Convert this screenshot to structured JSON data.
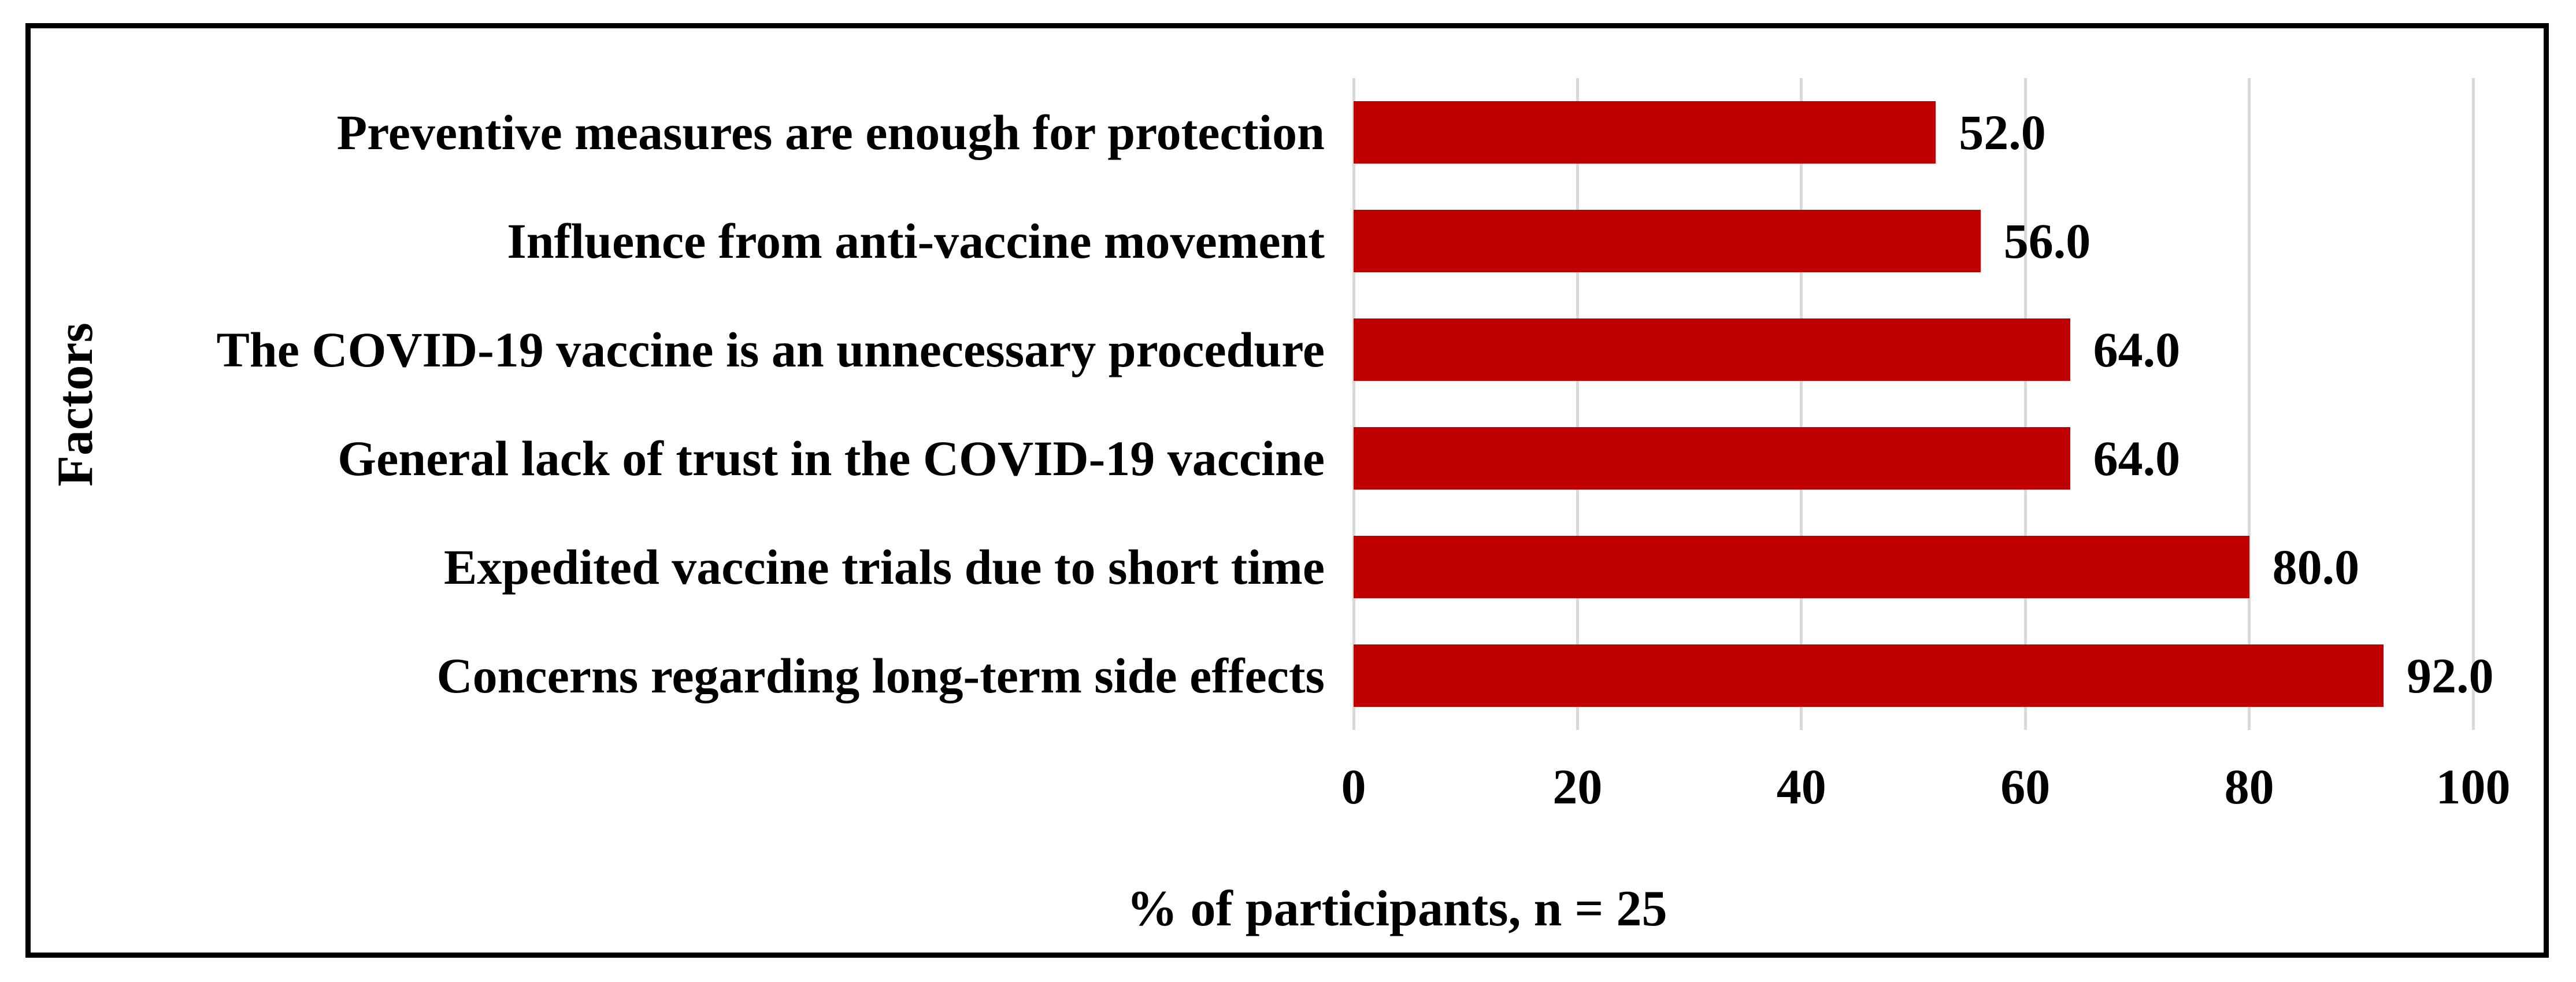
{
  "figure": {
    "background_color": "#FFFFFF",
    "border_color": "#000000"
  },
  "chart_data": {
    "type": "bar",
    "orientation": "horizontal",
    "title": "",
    "xlabel": "% of participants, n = 25",
    "ylabel": "Factors",
    "categories": [
      "Preventive measures are enough for protection",
      "Influence from anti-vaccine movement",
      "The COVID-19 vaccine is an unnecessary procedure",
      "General lack of trust in the COVID-19 vaccine",
      "Expedited vaccine trials due to short time",
      "Concerns regarding long-term side effects"
    ],
    "values": [
      52.0,
      56.0,
      64.0,
      64.0,
      80.0,
      92.0
    ],
    "value_labels": [
      "52.0",
      "56.0",
      "64.0",
      "64.0",
      "80.0",
      "92.0"
    ],
    "xlim": [
      0,
      100
    ],
    "xticks": [
      0,
      20,
      40,
      60,
      80,
      100
    ],
    "xtick_labels": [
      "0",
      "20",
      "40",
      "60",
      "80",
      "100"
    ],
    "bar_color": "#C00000",
    "gridline_color": "#D9D9D9",
    "text_color": "#000000",
    "grid": "vertical-only",
    "legend_position": "none"
  }
}
